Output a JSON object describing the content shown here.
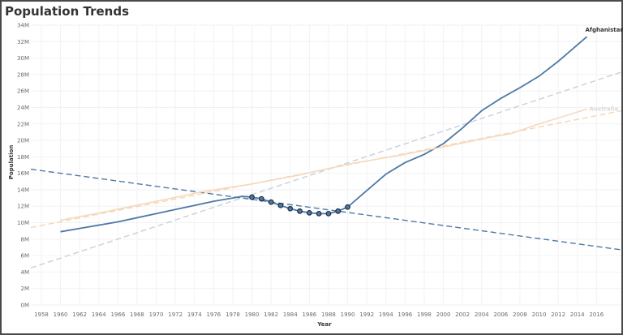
{
  "chart_data": {
    "type": "line",
    "title": "Population Trends",
    "xlabel": "Year",
    "ylabel": "Population",
    "xlim": [
      1956.9,
      2018.6
    ],
    "ylim": [
      0,
      34
    ],
    "grid": true,
    "x_ticks": [
      "1958",
      "1960",
      "1962",
      "1964",
      "1966",
      "1968",
      "1970",
      "1972",
      "1974",
      "1976",
      "1978",
      "1980",
      "1982",
      "1984",
      "1986",
      "1988",
      "1990",
      "1992",
      "1994",
      "1996",
      "1998",
      "2000",
      "2002",
      "2004",
      "2006",
      "2008",
      "2010",
      "2012",
      "2014",
      "2016"
    ],
    "y_ticks": [
      "0M",
      "2M",
      "4M",
      "6M",
      "8M",
      "10M",
      "12M",
      "14M",
      "16M",
      "18M",
      "20M",
      "22M",
      "24M",
      "26M",
      "28M",
      "30M",
      "32M",
      "34M"
    ],
    "series": [
      {
        "name": "Afghanistan",
        "color": "#4e79a7",
        "style": "solid",
        "label_visible": true,
        "x": [
          1960,
          1962,
          1964,
          1966,
          1968,
          1970,
          1972,
          1974,
          1976,
          1978,
          1979,
          1980,
          1981,
          1982,
          1983,
          1984,
          1985,
          1986,
          1987,
          1988,
          1989,
          1990,
          1992,
          1994,
          1996,
          1998,
          2000,
          2002,
          2004,
          2006,
          2008,
          2010,
          2012,
          2014,
          2015
        ],
        "y": [
          8.9,
          9.3,
          9.7,
          10.1,
          10.6,
          11.1,
          11.6,
          12.1,
          12.6,
          13.0,
          13.2,
          13.1,
          12.9,
          12.5,
          12.1,
          11.7,
          11.4,
          11.2,
          11.1,
          11.1,
          11.4,
          11.9,
          13.9,
          15.9,
          17.3,
          18.3,
          19.6,
          21.5,
          23.6,
          25.1,
          26.4,
          27.8,
          29.6,
          31.6,
          32.6
        ],
        "highlighted_x": [
          1980,
          1981,
          1982,
          1983,
          1984,
          1985,
          1986,
          1987,
          1988,
          1989,
          1990
        ]
      },
      {
        "name": "Australia",
        "color": "#f1ce63",
        "style": "solid",
        "label_visible": true,
        "x": [
          1960,
          1965,
          1970,
          1975,
          1980,
          1985,
          1990,
          1995,
          2000,
          2005,
          2007,
          2010,
          2015
        ],
        "y": [
          10.3,
          11.4,
          12.6,
          13.8,
          14.7,
          15.8,
          17.1,
          18.1,
          19.2,
          20.4,
          20.8,
          22.0,
          23.8
        ]
      }
    ],
    "trend_lines": [
      {
        "of": "Afghanistan 1980-1990",
        "color": "#4e79a7",
        "x": [
          1956.9,
          2018.6
        ],
        "y": [
          16.5,
          6.7
        ]
      },
      {
        "of": "Afghanistan",
        "color": "#c7d0de",
        "x": [
          1956.9,
          2018.6
        ],
        "y": [
          4.5,
          28.3
        ]
      },
      {
        "of": "Australia",
        "color": "#f5d5b5",
        "x": [
          1956.9,
          2018.6
        ],
        "y": [
          9.4,
          23.6
        ]
      }
    ]
  }
}
